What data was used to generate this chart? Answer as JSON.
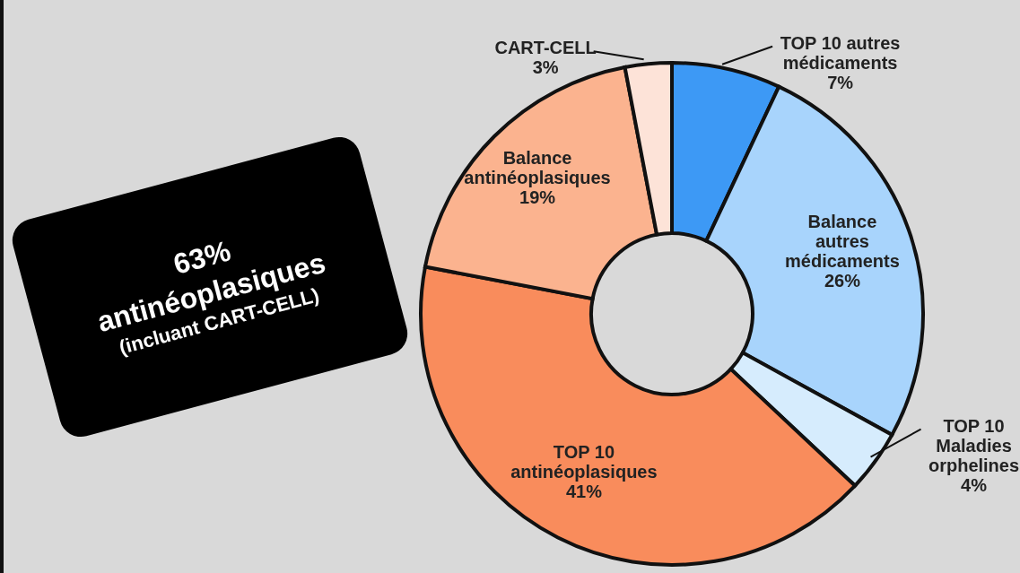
{
  "chart_data": {
    "type": "donut",
    "categories": [
      "TOP 10 autres médicaments",
      "Balance autres médicaments",
      "TOP 10 Maladies orphelines",
      "TOP 10 antinéoplasiques",
      "Balance antinéoplasiques",
      "CART-CELL"
    ],
    "values": [
      7,
      26,
      4,
      41,
      19,
      3
    ],
    "value_labels": [
      "7%",
      "26%",
      "4%",
      "41%",
      "19%",
      "3%"
    ],
    "colors": [
      "#3d99f5",
      "#a8d4fc",
      "#d6ecfd",
      "#f98c5c",
      "#fbb38f",
      "#fde3d8"
    ],
    "annotations": [
      "63%",
      "antinéoplasiques",
      "(incluant CART-CELL)"
    ],
    "legend": false
  }
}
